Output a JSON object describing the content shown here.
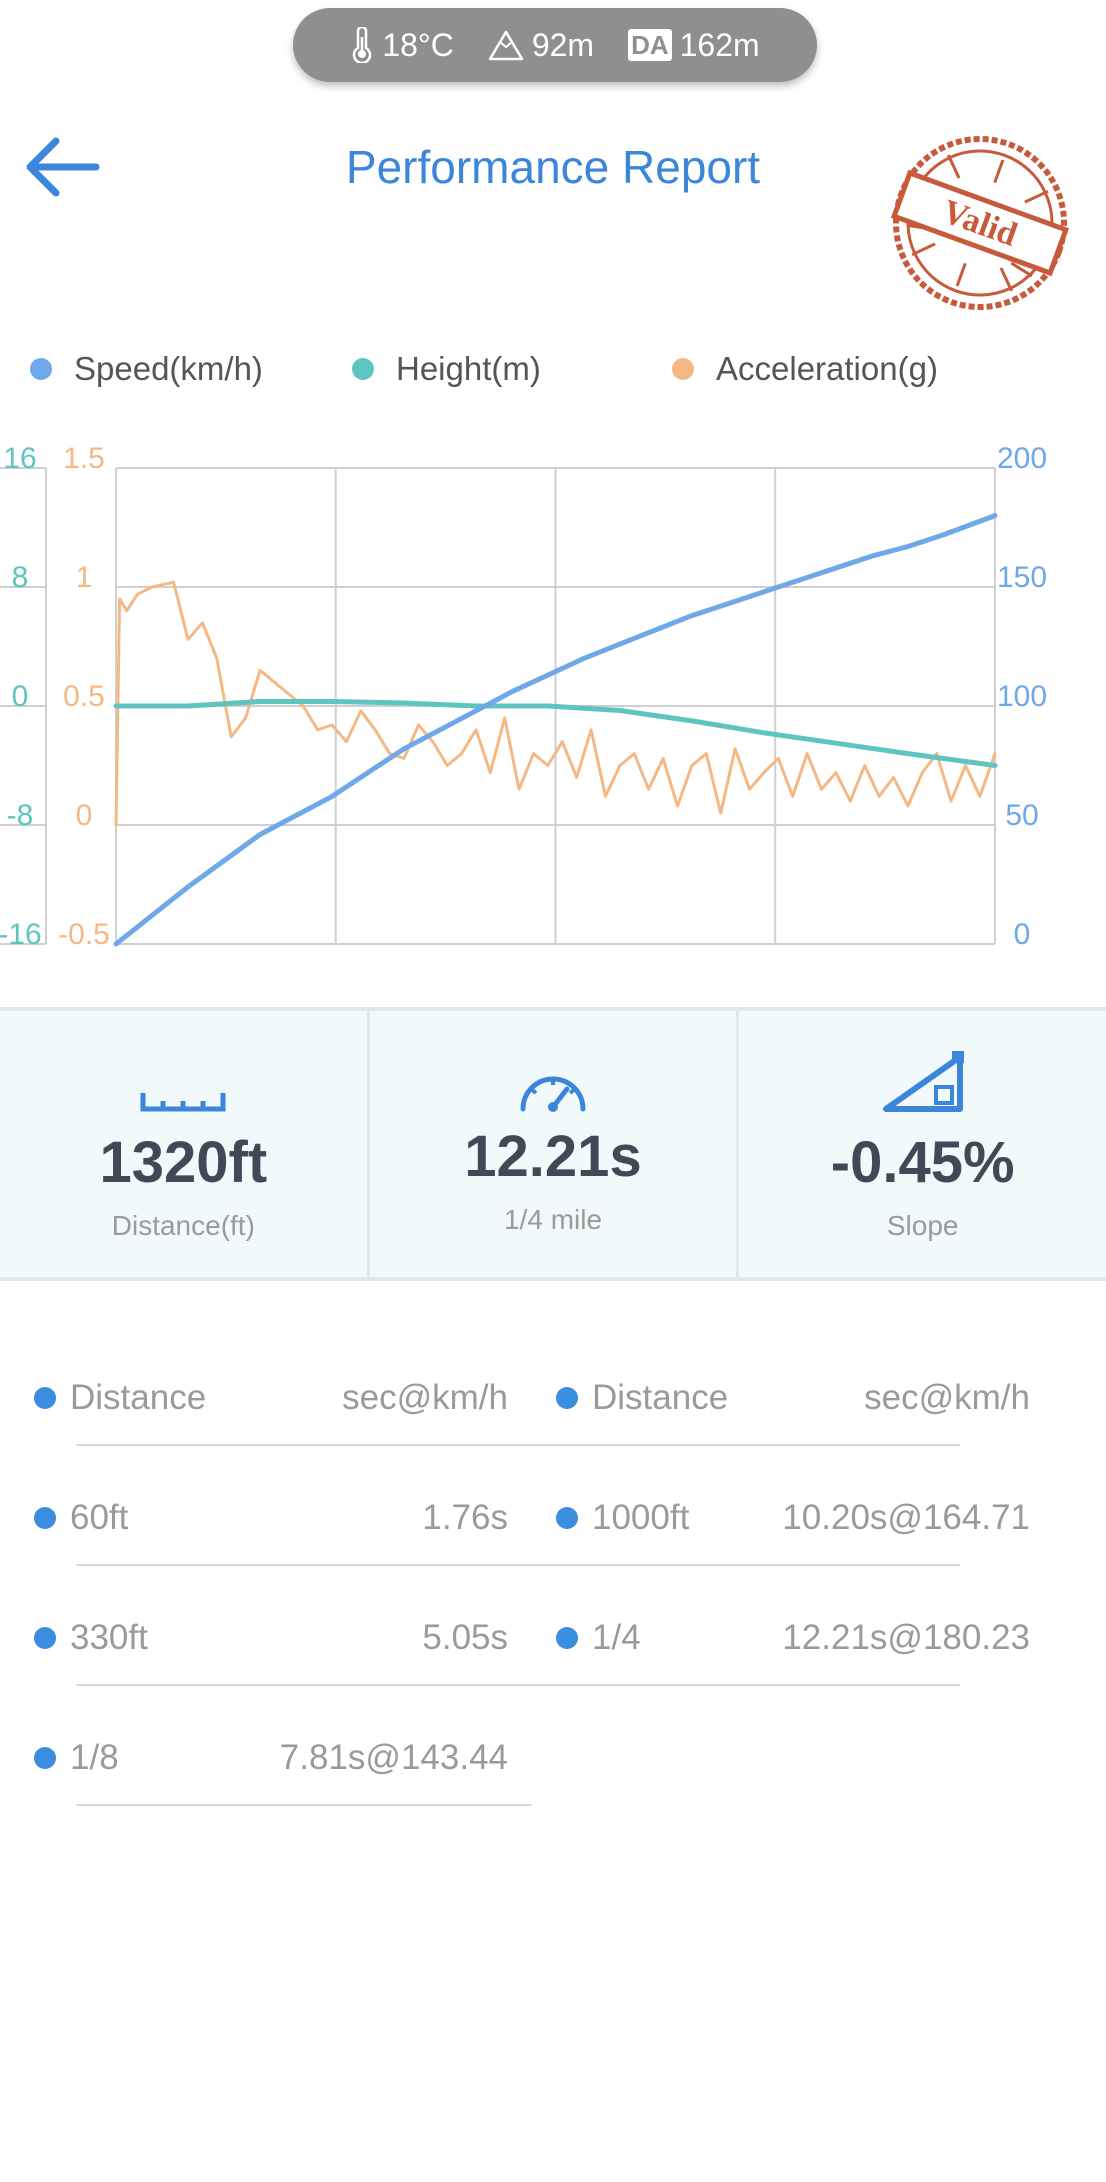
{
  "env": {
    "temperature": "18°C",
    "altitude": "92m",
    "density_altitude_badge": "DA",
    "density_altitude": "162m"
  },
  "header": {
    "title": "Performance Report",
    "stamp_text": "Valid"
  },
  "legend": [
    {
      "label": "Speed(km/h)",
      "color": "#6fa8e8"
    },
    {
      "label": "Height(m)",
      "color": "#5ec4bf"
    },
    {
      "label": "Acceleration(g)",
      "color": "#f4b885"
    }
  ],
  "chart_data": {
    "type": "line",
    "x_range": [
      0,
      12.21
    ],
    "axes": {
      "height_ticks": [
        "16",
        "8",
        "0",
        "-8",
        "-16"
      ],
      "acceleration_ticks": [
        "1.5",
        "1",
        "0.5",
        "0",
        "-0.5"
      ],
      "speed_ticks": [
        "200",
        "150",
        "100",
        "50",
        "0"
      ],
      "height_range": [
        -16,
        16
      ],
      "acceleration_range": [
        -0.5,
        1.5
      ],
      "speed_range": [
        0,
        200
      ]
    },
    "grid": true,
    "series": [
      {
        "name": "Speed(km/h)",
        "color": "#6fa8e8",
        "axis": "speed",
        "x": [
          0,
          0.5,
          1,
          1.5,
          2,
          2.5,
          3,
          3.5,
          4,
          4.5,
          5,
          5.5,
          6,
          6.5,
          7,
          7.5,
          8,
          8.5,
          9,
          9.5,
          10,
          10.5,
          11,
          11.5,
          12.21
        ],
        "values": [
          0,
          12,
          24,
          35,
          46,
          54,
          62,
          72,
          82,
          90,
          98,
          106,
          113,
          120,
          126,
          132,
          138,
          143,
          148,
          153,
          158,
          163,
          167,
          172,
          180
        ]
      },
      {
        "name": "Height(m)",
        "color": "#5ec4bf",
        "axis": "height",
        "x": [
          0,
          1,
          2,
          3,
          4,
          5,
          6,
          7,
          8,
          9,
          10,
          11,
          12.21
        ],
        "values": [
          0,
          0,
          0.3,
          0.3,
          0.2,
          0,
          0,
          -0.3,
          -1,
          -1.8,
          -2.5,
          -3.2,
          -4
        ]
      },
      {
        "name": "Acceleration(g)",
        "color": "#f4b885",
        "axis": "acceleration",
        "x": [
          0,
          0.05,
          0.15,
          0.3,
          0.5,
          0.8,
          1.0,
          1.2,
          1.4,
          1.6,
          1.8,
          2.0,
          2.2,
          2.4,
          2.6,
          2.8,
          3.0,
          3.2,
          3.4,
          3.6,
          3.8,
          4.0,
          4.2,
          4.4,
          4.6,
          4.8,
          5.0,
          5.2,
          5.4,
          5.6,
          5.8,
          6.0,
          6.2,
          6.4,
          6.6,
          6.8,
          7.0,
          7.2,
          7.4,
          7.6,
          7.8,
          8.0,
          8.2,
          8.4,
          8.6,
          8.8,
          9.0,
          9.2,
          9.4,
          9.6,
          9.8,
          10.0,
          10.2,
          10.4,
          10.6,
          10.8,
          11.0,
          11.2,
          11.4,
          11.6,
          11.8,
          12.0,
          12.21
        ],
        "values": [
          0,
          0.95,
          0.9,
          0.97,
          1.0,
          1.02,
          0.78,
          0.85,
          0.7,
          0.37,
          0.45,
          0.65,
          0.6,
          0.55,
          0.5,
          0.4,
          0.42,
          0.35,
          0.48,
          0.4,
          0.3,
          0.28,
          0.42,
          0.35,
          0.25,
          0.3,
          0.4,
          0.22,
          0.45,
          0.15,
          0.3,
          0.25,
          0.35,
          0.2,
          0.4,
          0.12,
          0.25,
          0.3,
          0.15,
          0.28,
          0.08,
          0.25,
          0.3,
          0.05,
          0.32,
          0.15,
          0.22,
          0.28,
          0.12,
          0.3,
          0.15,
          0.22,
          0.1,
          0.25,
          0.12,
          0.2,
          0.08,
          0.22,
          0.3,
          0.1,
          0.25,
          0.12,
          0.3
        ]
      }
    ]
  },
  "stats": [
    {
      "icon": "ruler-icon",
      "value": "1320ft",
      "label": "Distance(ft)"
    },
    {
      "icon": "speedometer-icon",
      "value": "12.21s",
      "label": "1/4 mile"
    },
    {
      "icon": "slope-icon",
      "value": "-0.45%",
      "label": "Slope"
    }
  ],
  "splits": {
    "header": {
      "col1": "Distance",
      "col2": "sec@km/h"
    },
    "left": [
      {
        "distance": "60ft",
        "value": "1.76s"
      },
      {
        "distance": "330ft",
        "value": "5.05s"
      },
      {
        "distance": "1/8",
        "value": "7.81s@143.44"
      }
    ],
    "right": [
      {
        "distance": "1000ft",
        "value": "10.20s@164.71"
      },
      {
        "distance": "1/4",
        "value": "12.21s@180.23"
      }
    ]
  }
}
